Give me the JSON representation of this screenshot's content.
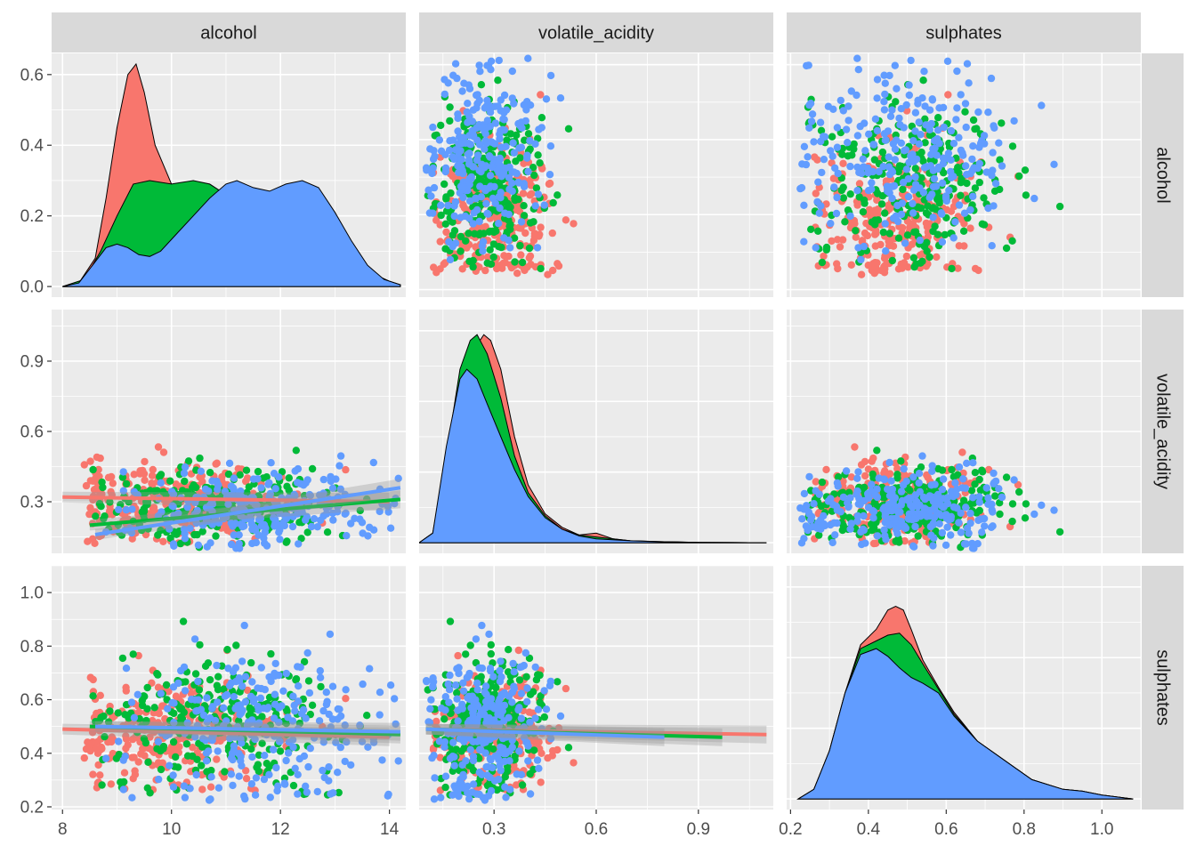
{
  "chart_data": {
    "type": "scatter",
    "layout": "pairs-matrix",
    "variables": [
      "alcohol",
      "volatile_acidity",
      "sulphates"
    ],
    "column_strips": [
      "alcohol",
      "volatile_acidity",
      "sulphates"
    ],
    "row_strips": [
      "alcohol",
      "volatile_acidity",
      "sulphates"
    ],
    "axes": {
      "alcohol": {
        "range": [
          7.8,
          14.3
        ],
        "ticks": [
          8,
          10,
          12,
          14
        ],
        "tick_labels": [
          "8",
          "10",
          "12",
          "14"
        ]
      },
      "volatile_acidity": {
        "range": [
          0.08,
          1.12
        ],
        "ticks": [
          0.3,
          0.6,
          0.9
        ],
        "tick_labels": [
          "0.3",
          "0.6",
          "0.9"
        ]
      },
      "sulphates": {
        "range": [
          0.19,
          1.1
        ],
        "ticks": [
          0.2,
          0.4,
          0.6,
          0.8,
          1.0
        ],
        "tick_labels": [
          "0.2",
          "0.4",
          "0.6",
          "0.8",
          "1.0"
        ]
      }
    },
    "density_axis": {
      "range": [
        -0.03,
        0.66
      ],
      "ticks": [
        0.0,
        0.2,
        0.4,
        0.6
      ],
      "tick_labels": [
        "0.0",
        "0.2",
        "0.4",
        "0.6"
      ]
    },
    "grid": true,
    "legend": "none",
    "groups": [
      {
        "color": "#F8766D"
      },
      {
        "color": "#00BA38"
      },
      {
        "color": "#619CFF"
      }
    ],
    "densities": {
      "alcohol": [
        {
          "group": 0,
          "x": [
            8.0,
            8.3,
            8.6,
            8.8,
            9.0,
            9.2,
            9.35,
            9.5,
            9.7,
            10.0,
            10.4,
            10.8,
            11.2,
            11.6,
            12.0,
            12.5,
            13.0,
            13.5,
            14.0,
            14.2
          ],
          "y": [
            0.0,
            0.01,
            0.08,
            0.25,
            0.45,
            0.6,
            0.63,
            0.55,
            0.4,
            0.29,
            0.26,
            0.24,
            0.2,
            0.16,
            0.12,
            0.08,
            0.05,
            0.03,
            0.01,
            0.005
          ]
        },
        {
          "group": 1,
          "x": [
            8.0,
            8.4,
            8.7,
            9.0,
            9.3,
            9.6,
            10.0,
            10.4,
            10.7,
            11.0,
            11.4,
            11.8,
            12.2,
            12.6,
            13.0,
            13.5,
            14.0,
            14.2
          ],
          "y": [
            0.0,
            0.02,
            0.1,
            0.2,
            0.29,
            0.3,
            0.29,
            0.3,
            0.29,
            0.26,
            0.23,
            0.22,
            0.2,
            0.16,
            0.1,
            0.05,
            0.015,
            0.005
          ]
        },
        {
          "group": 2,
          "x": [
            8.0,
            8.3,
            8.6,
            8.8,
            9.0,
            9.2,
            9.4,
            9.6,
            9.8,
            10.1,
            10.4,
            10.7,
            11.0,
            11.2,
            11.5,
            11.8,
            12.1,
            12.4,
            12.7,
            13.0,
            13.3,
            13.6,
            13.9,
            14.2
          ],
          "y": [
            0.0,
            0.01,
            0.07,
            0.11,
            0.12,
            0.11,
            0.09,
            0.085,
            0.1,
            0.15,
            0.2,
            0.25,
            0.29,
            0.3,
            0.28,
            0.27,
            0.29,
            0.3,
            0.28,
            0.21,
            0.13,
            0.06,
            0.02,
            0.005
          ]
        }
      ],
      "volatile_acidity": [
        {
          "group": 0,
          "x": [
            0.08,
            0.12,
            0.16,
            0.2,
            0.24,
            0.27,
            0.29,
            0.32,
            0.36,
            0.4,
            0.45,
            0.5,
            0.55,
            0.6,
            0.65,
            0.7,
            0.8,
            0.9,
            1.0,
            1.1
          ],
          "y": [
            0.0,
            0.05,
            0.4,
            0.85,
            1.0,
            1.08,
            1.05,
            0.9,
            0.55,
            0.3,
            0.15,
            0.08,
            0.04,
            0.05,
            0.02,
            0.01,
            0.005,
            0.002,
            0.001,
            0.0
          ]
        },
        {
          "group": 1,
          "x": [
            0.08,
            0.12,
            0.16,
            0.2,
            0.23,
            0.25,
            0.28,
            0.32,
            0.36,
            0.4,
            0.45,
            0.5,
            0.55,
            0.6,
            0.7,
            0.8,
            0.9,
            1.0,
            1.1
          ],
          "y": [
            0.0,
            0.05,
            0.45,
            0.9,
            1.05,
            1.08,
            0.98,
            0.75,
            0.45,
            0.26,
            0.14,
            0.07,
            0.04,
            0.03,
            0.01,
            0.005,
            0.002,
            0.001,
            0.0
          ]
        },
        {
          "group": 2,
          "x": [
            0.08,
            0.12,
            0.16,
            0.2,
            0.22,
            0.25,
            0.28,
            0.32,
            0.36,
            0.4,
            0.45,
            0.5,
            0.55,
            0.6,
            0.7,
            0.8,
            0.9,
            1.0,
            1.1
          ],
          "y": [
            0.0,
            0.05,
            0.5,
            0.85,
            0.9,
            0.85,
            0.72,
            0.55,
            0.38,
            0.24,
            0.13,
            0.07,
            0.035,
            0.02,
            0.01,
            0.004,
            0.002,
            0.001,
            0.0
          ]
        }
      ],
      "sulphates": [
        {
          "group": 0,
          "x": [
            0.22,
            0.26,
            0.3,
            0.34,
            0.38,
            0.42,
            0.45,
            0.47,
            0.49,
            0.51,
            0.54,
            0.58,
            0.62,
            0.68,
            0.75,
            0.82,
            0.9,
            0.95,
            1.0,
            1.08
          ],
          "y": [
            0.0,
            0.05,
            0.25,
            0.55,
            0.8,
            0.88,
            0.98,
            1.0,
            0.98,
            0.88,
            0.72,
            0.58,
            0.45,
            0.3,
            0.2,
            0.1,
            0.05,
            0.04,
            0.02,
            0.0
          ]
        },
        {
          "group": 1,
          "x": [
            0.22,
            0.26,
            0.3,
            0.34,
            0.38,
            0.42,
            0.45,
            0.48,
            0.51,
            0.54,
            0.58,
            0.62,
            0.68,
            0.75,
            0.82,
            0.9,
            0.95,
            1.0,
            1.08
          ],
          "y": [
            0.0,
            0.05,
            0.25,
            0.55,
            0.78,
            0.82,
            0.85,
            0.86,
            0.8,
            0.7,
            0.57,
            0.44,
            0.3,
            0.2,
            0.1,
            0.05,
            0.04,
            0.02,
            0.0
          ]
        },
        {
          "group": 2,
          "x": [
            0.22,
            0.26,
            0.3,
            0.34,
            0.38,
            0.42,
            0.45,
            0.48,
            0.51,
            0.54,
            0.58,
            0.62,
            0.68,
            0.75,
            0.82,
            0.9,
            0.95,
            1.0,
            1.08
          ],
          "y": [
            0.0,
            0.05,
            0.25,
            0.55,
            0.75,
            0.78,
            0.74,
            0.68,
            0.63,
            0.6,
            0.55,
            0.43,
            0.3,
            0.2,
            0.1,
            0.05,
            0.04,
            0.02,
            0.0
          ]
        }
      ]
    },
    "scatter_model": {
      "n_per_group": 260,
      "groups": [
        {
          "alcohol": [
            9.9,
            1.1,
            8.4,
            14.2
          ],
          "volatile_acidity": [
            0.3,
            0.09,
            0.12,
            1.1
          ],
          "sulphates": [
            0.47,
            0.11,
            0.26,
            0.88
          ]
        },
        {
          "alcohol": [
            10.9,
            1.2,
            8.5,
            14.2
          ],
          "volatile_acidity": [
            0.28,
            0.08,
            0.1,
            0.97
          ],
          "sulphates": [
            0.5,
            0.13,
            0.24,
            1.0
          ]
        },
        {
          "alcohol": [
            11.6,
            1.25,
            8.6,
            14.2
          ],
          "volatile_acidity": [
            0.26,
            0.08,
            0.1,
            0.8
          ],
          "sulphates": [
            0.49,
            0.13,
            0.22,
            1.08
          ]
        }
      ]
    },
    "fits": [
      {
        "x": "alcohol",
        "y": "volatile_acidity",
        "group": 0,
        "x0": 8.0,
        "x1": 14.0,
        "y0": 0.32,
        "y1": 0.3
      },
      {
        "x": "alcohol",
        "y": "volatile_acidity",
        "group": 1,
        "x0": 8.5,
        "x1": 14.2,
        "y0": 0.2,
        "y1": 0.31
      },
      {
        "x": "alcohol",
        "y": "volatile_acidity",
        "group": 2,
        "x0": 8.6,
        "x1": 14.2,
        "y0": 0.16,
        "y1": 0.36
      },
      {
        "x": "alcohol",
        "y": "sulphates",
        "group": 0,
        "x0": 8.0,
        "x1": 14.0,
        "y0": 0.49,
        "y1": 0.46
      },
      {
        "x": "alcohol",
        "y": "sulphates",
        "group": 1,
        "x0": 8.5,
        "x1": 14.2,
        "y0": 0.5,
        "y1": 0.47
      },
      {
        "x": "alcohol",
        "y": "sulphates",
        "group": 2,
        "x0": 8.6,
        "x1": 14.2,
        "y0": 0.5,
        "y1": 0.48
      },
      {
        "x": "volatile_acidity",
        "y": "sulphates",
        "group": 0,
        "x0": 0.1,
        "x1": 1.1,
        "y0": 0.49,
        "y1": 0.47
      },
      {
        "x": "volatile_acidity",
        "y": "sulphates",
        "group": 1,
        "x0": 0.1,
        "x1": 0.97,
        "y0": 0.49,
        "y1": 0.46
      },
      {
        "x": "volatile_acidity",
        "y": "sulphates",
        "group": 2,
        "x0": 0.1,
        "x1": 0.8,
        "y0": 0.49,
        "y1": 0.46
      }
    ]
  }
}
